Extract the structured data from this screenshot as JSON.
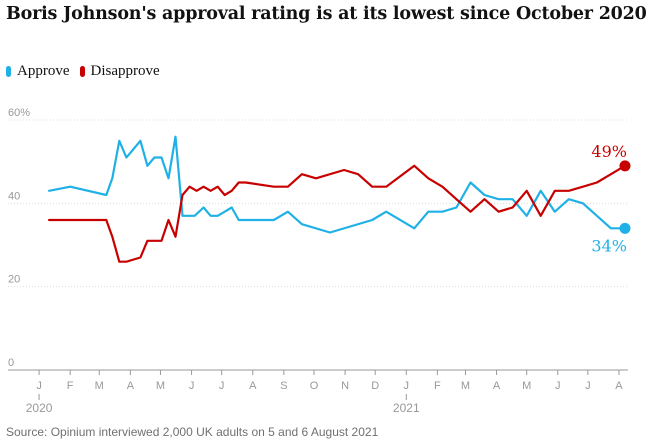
{
  "title": "Boris Johnson's approval rating is at its lowest since October 2020",
  "legend": [
    {
      "name": "Approve",
      "color": "#1fb1e6"
    },
    {
      "name": "Disapprove",
      "color": "#c70000"
    }
  ],
  "source": "Source: Opinium interviewed 2,000 UK adults on 5 and 6 August 2021",
  "chart_data": {
    "type": "line",
    "title": "Boris Johnson's approval rating is at its lowest since October 2020",
    "xlabel": "",
    "ylabel": "",
    "ylim": [
      0,
      60
    ],
    "xlim": [
      "2019-12-10",
      "2021-08-10"
    ],
    "grid": true,
    "legend_position": "top-left",
    "y_ticks": [
      {
        "value": 0,
        "label": "0"
      },
      {
        "value": 20,
        "label": "20"
      },
      {
        "value": 40,
        "label": "40"
      },
      {
        "value": 60,
        "label": "60%"
      }
    ],
    "x_ticks": [
      {
        "date": "2020-01-01",
        "label": "J"
      },
      {
        "date": "2020-02-01",
        "label": "F"
      },
      {
        "date": "2020-03-01",
        "label": "M"
      },
      {
        "date": "2020-04-01",
        "label": "A"
      },
      {
        "date": "2020-05-01",
        "label": "M"
      },
      {
        "date": "2020-06-01",
        "label": "J"
      },
      {
        "date": "2020-07-01",
        "label": "J"
      },
      {
        "date": "2020-08-01",
        "label": "A"
      },
      {
        "date": "2020-09-01",
        "label": "S"
      },
      {
        "date": "2020-10-01",
        "label": "O"
      },
      {
        "date": "2020-11-01",
        "label": "N"
      },
      {
        "date": "2020-12-01",
        "label": "D"
      },
      {
        "date": "2021-01-01",
        "label": "J"
      },
      {
        "date": "2021-02-01",
        "label": "F"
      },
      {
        "date": "2021-03-01",
        "label": "M"
      },
      {
        "date": "2021-04-01",
        "label": "A"
      },
      {
        "date": "2021-05-01",
        "label": "M"
      },
      {
        "date": "2021-06-01",
        "label": "J"
      },
      {
        "date": "2021-07-01",
        "label": "J"
      },
      {
        "date": "2021-08-01",
        "label": "A"
      }
    ],
    "year_labels": [
      {
        "date": "2020-01-01",
        "label": "2020"
      },
      {
        "date": "2021-01-01",
        "label": "2021"
      }
    ],
    "series": [
      {
        "name": "Approve",
        "color": "#1fb1e6",
        "end_label": "34%",
        "x": [
          "2020-01-11",
          "2020-02-01",
          "2020-03-08",
          "2020-03-14",
          "2020-03-21",
          "2020-03-28",
          "2020-04-11",
          "2020-04-18",
          "2020-04-25",
          "2020-05-02",
          "2020-05-09",
          "2020-05-16",
          "2020-05-23",
          "2020-05-30",
          "2020-06-04",
          "2020-06-13",
          "2020-06-20",
          "2020-06-27",
          "2020-07-04",
          "2020-07-11",
          "2020-07-18",
          "2020-07-25",
          "2020-08-22",
          "2020-09-05",
          "2020-09-19",
          "2020-10-17",
          "2020-11-28",
          "2020-12-12",
          "2021-01-09",
          "2021-01-23",
          "2021-02-06",
          "2021-02-20",
          "2021-03-06",
          "2021-03-20",
          "2021-04-03",
          "2021-04-17",
          "2021-05-01",
          "2021-05-15",
          "2021-05-29",
          "2021-06-12",
          "2021-06-26",
          "2021-07-10",
          "2021-07-24",
          "2021-08-07"
        ],
        "values": [
          43,
          44,
          42,
          46,
          55,
          51,
          55,
          49,
          51,
          51,
          46,
          56,
          37,
          37,
          37,
          39,
          37,
          37,
          38,
          39,
          36,
          36,
          36,
          38,
          35,
          33,
          36,
          38,
          34,
          38,
          38,
          39,
          45,
          42,
          41,
          41,
          37,
          43,
          38,
          41,
          40,
          37,
          34,
          34
        ]
      },
      {
        "name": "Disapprove",
        "color": "#c70000",
        "end_label": "49%",
        "x": [
          "2020-01-11",
          "2020-03-08",
          "2020-03-14",
          "2020-03-21",
          "2020-03-28",
          "2020-04-11",
          "2020-04-18",
          "2020-04-25",
          "2020-05-02",
          "2020-05-09",
          "2020-05-16",
          "2020-05-23",
          "2020-05-30",
          "2020-06-06",
          "2020-06-13",
          "2020-06-20",
          "2020-06-27",
          "2020-07-04",
          "2020-07-11",
          "2020-07-18",
          "2020-07-25",
          "2020-08-22",
          "2020-09-05",
          "2020-09-19",
          "2020-10-03",
          "2020-10-31",
          "2020-11-14",
          "2020-11-28",
          "2020-12-12",
          "2021-01-09",
          "2021-01-23",
          "2021-02-06",
          "2021-02-20",
          "2021-03-06",
          "2021-03-20",
          "2021-04-03",
          "2021-04-17",
          "2021-05-01",
          "2021-05-15",
          "2021-05-29",
          "2021-06-12",
          "2021-06-26",
          "2021-07-10",
          "2021-07-24",
          "2021-08-07"
        ],
        "values": [
          36,
          36,
          32,
          26,
          26,
          27,
          31,
          31,
          31,
          36,
          32,
          42,
          44,
          43,
          44,
          43,
          44,
          42,
          43,
          45,
          45,
          44,
          44,
          47,
          46,
          48,
          47,
          44,
          44,
          49,
          46,
          44,
          41,
          38,
          41,
          38,
          39,
          43,
          37,
          43,
          43,
          44,
          45,
          47,
          49
        ]
      }
    ]
  }
}
